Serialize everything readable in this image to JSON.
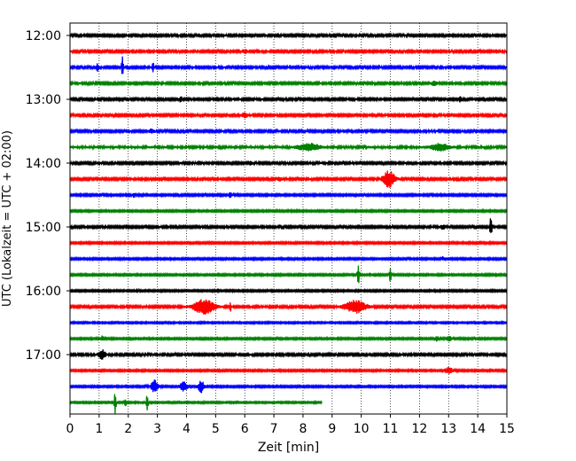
{
  "chart_data": {
    "type": "line",
    "title": "",
    "xlabel": "Zeit  [min]",
    "ylabel": "UTC (Lokalzeit = UTC + 02:00)",
    "xlim": [
      0,
      15
    ],
    "x_ticks": [
      0,
      1,
      2,
      3,
      4,
      5,
      6,
      7,
      8,
      9,
      10,
      11,
      12,
      13,
      14,
      15
    ],
    "x_tick_labels": [
      "0",
      "1",
      "2",
      "3",
      "4",
      "5",
      "6",
      "7",
      "8",
      "9",
      "10",
      "11",
      "12",
      "13",
      "14",
      "15"
    ],
    "y_tick_labels": [
      "12:00",
      "13:00",
      "14:00",
      "15:00",
      "16:00",
      "17:00"
    ],
    "y_tick_rows": [
      0,
      4,
      8,
      12,
      16,
      20
    ],
    "rows_per_hour": 4,
    "minutes_per_row": 15,
    "grid": "vertical-dotted",
    "colors": [
      "#000000",
      "#ff0000",
      "#0000ff",
      "#008000"
    ],
    "series": [
      {
        "name": "12:00",
        "color_index": 0,
        "amp": 0.12,
        "end": 15,
        "events": []
      },
      {
        "name": "12:15",
        "color_index": 1,
        "amp": 0.12,
        "end": 15,
        "events": [
          {
            "t": 6.0,
            "a": 0.2,
            "w": 0.1
          }
        ]
      },
      {
        "name": "12:30",
        "color_index": 2,
        "amp": 0.12,
        "end": 15,
        "events": [
          {
            "t": 0.95,
            "a": 0.4,
            "w": 0.05
          },
          {
            "t": 1.8,
            "a": 1.4,
            "w": 0.03
          },
          {
            "t": 2.85,
            "a": 0.6,
            "w": 0.03
          }
        ]
      },
      {
        "name": "12:45",
        "color_index": 3,
        "amp": 0.12,
        "end": 15,
        "events": [
          {
            "t": 12.5,
            "a": 0.2,
            "w": 0.1
          }
        ]
      },
      {
        "name": "13:00",
        "color_index": 0,
        "amp": 0.12,
        "end": 15,
        "events": [
          {
            "t": 3.8,
            "a": 0.3,
            "w": 0.05
          },
          {
            "t": 13.4,
            "a": 0.3,
            "w": 0.05
          }
        ]
      },
      {
        "name": "13:15",
        "color_index": 1,
        "amp": 0.12,
        "end": 15,
        "events": [
          {
            "t": 6.0,
            "a": 0.25,
            "w": 0.1
          }
        ]
      },
      {
        "name": "13:30",
        "color_index": 2,
        "amp": 0.12,
        "end": 15,
        "events": [
          {
            "t": 2.8,
            "a": 0.2,
            "w": 0.1
          }
        ]
      },
      {
        "name": "13:45",
        "color_index": 3,
        "amp": 0.14,
        "end": 15,
        "events": [
          {
            "t": 8.2,
            "a": 0.4,
            "w": 0.35
          },
          {
            "t": 12.7,
            "a": 0.35,
            "w": 0.3
          }
        ]
      },
      {
        "name": "14:00",
        "color_index": 0,
        "amp": 0.12,
        "end": 15,
        "events": [
          {
            "t": 6.2,
            "a": 0.2,
            "w": 0.05
          }
        ]
      },
      {
        "name": "14:15",
        "color_index": 1,
        "amp": 0.12,
        "end": 15,
        "events": [
          {
            "t": 10.95,
            "a": 0.9,
            "w": 0.2
          },
          {
            "t": 7.2,
            "a": 0.2,
            "w": 0.1
          }
        ]
      },
      {
        "name": "14:30",
        "color_index": 2,
        "amp": 0.11,
        "end": 15,
        "events": [
          {
            "t": 2.2,
            "a": 0.25,
            "w": 0.05
          },
          {
            "t": 5.5,
            "a": 0.3,
            "w": 0.05
          }
        ]
      },
      {
        "name": "14:45",
        "color_index": 3,
        "amp": 0.1,
        "end": 15,
        "events": []
      },
      {
        "name": "15:00",
        "color_index": 0,
        "amp": 0.12,
        "end": 15,
        "events": [
          {
            "t": 14.45,
            "a": 1.1,
            "w": 0.04
          },
          {
            "t": 12.8,
            "a": 0.2,
            "w": 0.1
          }
        ]
      },
      {
        "name": "15:15",
        "color_index": 1,
        "amp": 0.1,
        "end": 15,
        "events": []
      },
      {
        "name": "15:30",
        "color_index": 2,
        "amp": 0.1,
        "end": 15,
        "events": [
          {
            "t": 12.8,
            "a": 0.2,
            "w": 0.05
          }
        ]
      },
      {
        "name": "15:45",
        "color_index": 3,
        "amp": 0.1,
        "end": 15,
        "events": [
          {
            "t": 9.9,
            "a": 1.4,
            "w": 0.03
          },
          {
            "t": 11.0,
            "a": 0.9,
            "w": 0.03
          }
        ]
      },
      {
        "name": "16:00",
        "color_index": 0,
        "amp": 0.1,
        "end": 15,
        "events": [
          {
            "t": 2.3,
            "a": 0.2,
            "w": 0.05
          }
        ]
      },
      {
        "name": "16:15",
        "color_index": 1,
        "amp": 0.12,
        "end": 15,
        "events": [
          {
            "t": 4.6,
            "a": 0.8,
            "w": 0.35
          },
          {
            "t": 5.5,
            "a": 0.6,
            "w": 0.03
          },
          {
            "t": 9.8,
            "a": 0.7,
            "w": 0.35
          }
        ]
      },
      {
        "name": "16:30",
        "color_index": 2,
        "amp": 0.09,
        "end": 15,
        "events": []
      },
      {
        "name": "16:45",
        "color_index": 3,
        "amp": 0.1,
        "end": 15,
        "events": [
          {
            "t": 1.1,
            "a": 0.3,
            "w": 0.05
          },
          {
            "t": 12.6,
            "a": 0.3,
            "w": 0.05
          },
          {
            "t": 13.0,
            "a": 0.25,
            "w": 0.1
          }
        ]
      },
      {
        "name": "17:00",
        "color_index": 0,
        "amp": 0.12,
        "end": 15,
        "events": [
          {
            "t": 1.1,
            "a": 0.5,
            "w": 0.12
          }
        ]
      },
      {
        "name": "17:15",
        "color_index": 1,
        "amp": 0.1,
        "end": 15,
        "events": [
          {
            "t": 13.0,
            "a": 0.3,
            "w": 0.15
          }
        ]
      },
      {
        "name": "17:30",
        "color_index": 2,
        "amp": 0.1,
        "end": 15,
        "events": [
          {
            "t": 2.9,
            "a": 0.7,
            "w": 0.12
          },
          {
            "t": 3.9,
            "a": 0.6,
            "w": 0.12
          },
          {
            "t": 4.5,
            "a": 0.7,
            "w": 0.1
          }
        ]
      },
      {
        "name": "17:45",
        "color_index": 3,
        "amp": 0.09,
        "end": 8.65,
        "events": [
          {
            "t": 1.55,
            "a": 1.4,
            "w": 0.03
          },
          {
            "t": 1.9,
            "a": 0.5,
            "w": 0.03
          },
          {
            "t": 2.65,
            "a": 1.2,
            "w": 0.03
          }
        ]
      }
    ]
  }
}
